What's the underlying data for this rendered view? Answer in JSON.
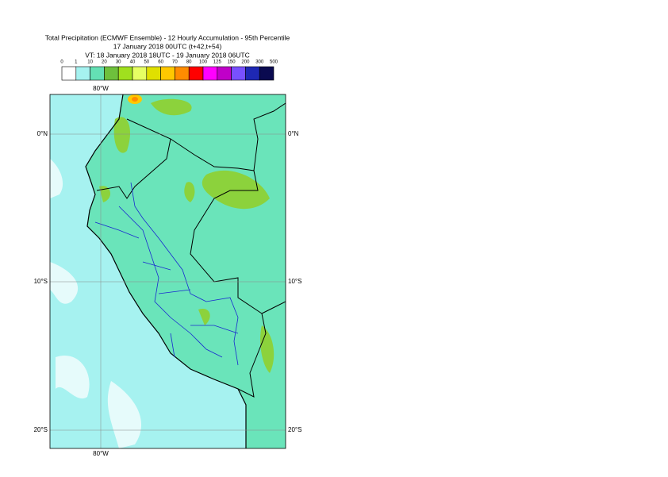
{
  "header": {
    "lines": [
      "Total Precipitation (ECMWF Ensemble) - 12 Hourly Accumulation - 95th Percentile",
      "17 January 2018 00UTC (t+42,t+54)",
      "VT: 18 January 2018 18UTC - 19 January 2018 06UTC"
    ]
  },
  "legend": {
    "labels": [
      "0",
      "1",
      "10",
      "20",
      "30",
      "40",
      "50",
      "60",
      "70",
      "80",
      "100",
      "125",
      "150",
      "200",
      "300",
      "500"
    ],
    "colors": [
      "#ffffff",
      "#a6f2f0",
      "#64e0b4",
      "#6ec03c",
      "#a0e01e",
      "#e6ff64",
      "#e0e000",
      "#ffc800",
      "#ff8c00",
      "#ff0000",
      "#ff00ff",
      "#c000c8",
      "#7850ff",
      "#1e28b4",
      "#0a0a50"
    ]
  },
  "map": {
    "lon_label": "80°W",
    "lat_labels": [
      "0°N",
      "10°S",
      "20°S"
    ]
  }
}
